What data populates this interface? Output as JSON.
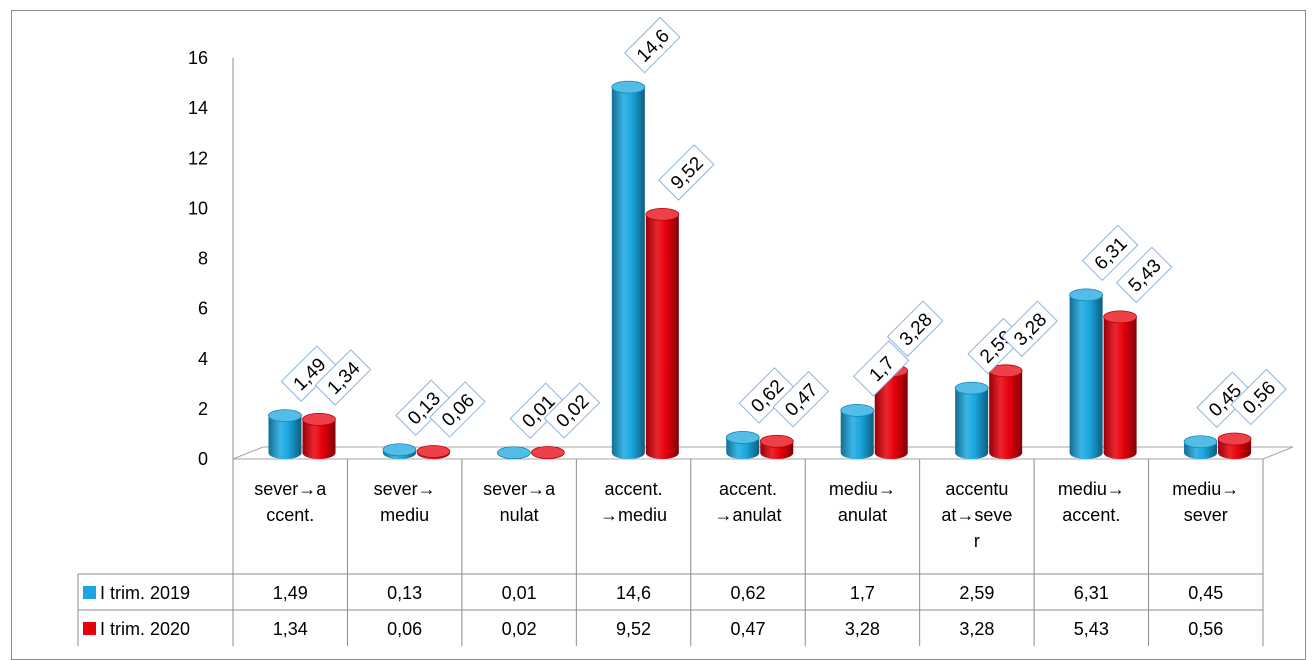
{
  "chart_data": {
    "type": "bar",
    "categories": [
      [
        "sever→a",
        "ccent."
      ],
      [
        "sever→",
        "mediu"
      ],
      [
        "sever→a",
        "nulat"
      ],
      [
        "accent.",
        "→mediu"
      ],
      [
        "accent.",
        "→anulat"
      ],
      [
        "mediu→",
        "anulat"
      ],
      [
        "accentu",
        "at→seve",
        "r"
      ],
      [
        "mediu→",
        "accent."
      ],
      [
        "mediu→",
        "sever"
      ]
    ],
    "series": [
      {
        "name": "I trim. 2019",
        "color": "#1aa7e0",
        "values": [
          1.49,
          0.13,
          0.01,
          14.6,
          0.62,
          1.7,
          2.59,
          6.31,
          0.45
        ],
        "labels": [
          "1,49",
          "0,13",
          "0,01",
          "14,6",
          "0,62",
          "1,7",
          "2,59",
          "6,31",
          "0,45"
        ]
      },
      {
        "name": "I trim. 2020",
        "color": "#e8000c",
        "values": [
          1.34,
          0.06,
          0.02,
          9.52,
          0.47,
          3.28,
          3.28,
          5.43,
          0.56
        ],
        "labels": [
          "1,34",
          "0,06",
          "0,02",
          "9,52",
          "0,47",
          "3,28",
          "3,28",
          "5,43",
          "0,56"
        ]
      }
    ],
    "yticks": [
      "0",
      "2",
      "4",
      "6",
      "8",
      "10",
      "12",
      "14",
      "16"
    ],
    "ylim": [
      0,
      16
    ],
    "legend": "data-table",
    "grid": false
  }
}
